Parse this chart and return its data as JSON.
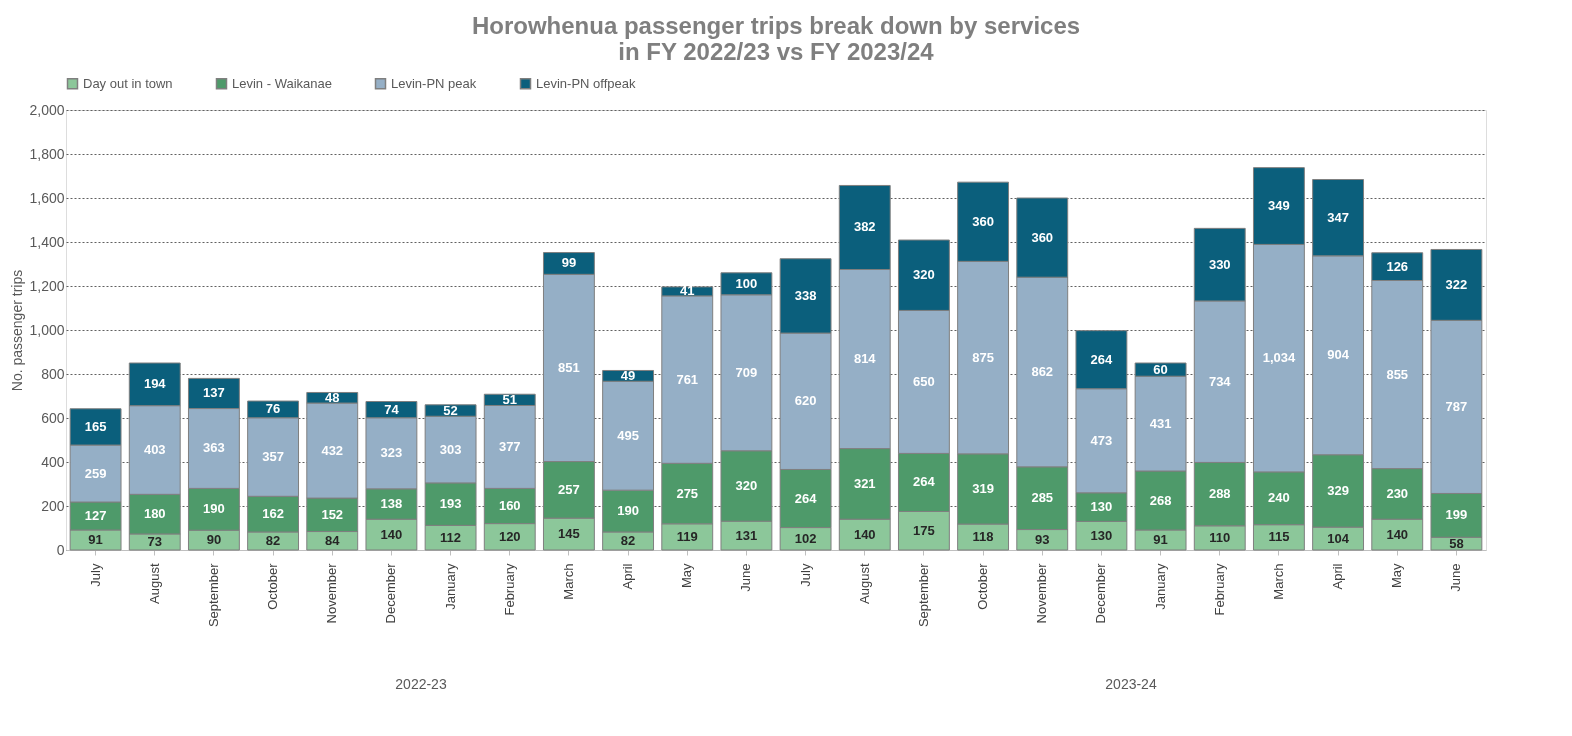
{
  "chart_data": {
    "type": "bar",
    "stacked": true,
    "title": "Horowhenua passenger trips break down by services\nin FY 2022/23 vs FY 2023/24",
    "ylabel": "No. passenger trips",
    "categories": [
      "July",
      "August",
      "September",
      "October",
      "November",
      "December",
      "January",
      "February",
      "March",
      "April",
      "May",
      "June",
      "July",
      "August",
      "September",
      "October",
      "November",
      "December",
      "January",
      "February",
      "March",
      "April",
      "May",
      "June"
    ],
    "series": [
      {
        "name": "Day out in town",
        "color": "#8cc79a",
        "values": [
          91,
          73,
          90,
          82,
          84,
          140,
          112,
          120,
          145,
          82,
          119,
          131,
          102,
          140,
          175,
          118,
          93,
          130,
          91,
          110,
          115,
          104,
          140,
          58
        ],
        "value_labels": [
          "91",
          "73",
          "90",
          "82",
          "84",
          "140",
          "112",
          "120",
          "145",
          "82",
          "119",
          "131",
          "102",
          "140",
          "175",
          "118",
          "93",
          "130",
          "91",
          "110",
          "115",
          "104",
          "140",
          "58"
        ]
      },
      {
        "name": "Levin - Waikanae",
        "color": "#4e9a6a",
        "values": [
          127,
          180,
          190,
          162,
          152,
          138,
          193,
          160,
          257,
          190,
          275,
          320,
          264,
          321,
          264,
          319,
          285,
          130,
          268,
          288,
          240,
          329,
          230,
          199
        ],
        "value_labels": [
          "127",
          "180",
          "190",
          "162",
          "152",
          "138",
          "193",
          "160",
          "257",
          "190",
          "275",
          "320",
          "264",
          "321",
          "264",
          "319",
          "285",
          "130",
          "268",
          "288",
          "240",
          "329",
          "230",
          "199"
        ]
      },
      {
        "name": "Levin-PN peak",
        "color": "#95afc6",
        "values": [
          259,
          403,
          363,
          357,
          432,
          323,
          303,
          377,
          851,
          495,
          761,
          709,
          620,
          814,
          650,
          875,
          862,
          473,
          431,
          734,
          1034,
          904,
          855,
          787
        ],
        "value_labels": [
          "259",
          "403",
          "363",
          "357",
          "432",
          "323",
          "303",
          "377",
          "851",
          "495",
          "761",
          "709",
          "620",
          "814",
          "650",
          "875",
          "862",
          "473",
          "431",
          "734",
          "1,034",
          "904",
          "855",
          "787"
        ]
      },
      {
        "name": "Levin-PN offpeak",
        "color": "#0b5f7c",
        "values": [
          165,
          194,
          137,
          76,
          48,
          74,
          52,
          51,
          99,
          49,
          41,
          100,
          338,
          382,
          320,
          360,
          360,
          264,
          60,
          330,
          349,
          347,
          126,
          322
        ],
        "value_labels": [
          "165",
          "194",
          "137",
          "76",
          "48",
          "74",
          "52",
          "51",
          "99",
          "49",
          "41",
          "100",
          "338",
          "382",
          "320",
          "360",
          "360",
          "264",
          "60",
          "330",
          "349",
          "347",
          "126",
          "322"
        ]
      }
    ],
    "ylim": [
      0,
      2000
    ],
    "yticks": [
      0,
      200,
      400,
      600,
      800,
      {
        "value": 1000,
        "label": "1,000"
      },
      {
        "value": 1200,
        "label": "1,200"
      },
      {
        "value": 1400,
        "label": "1,400"
      },
      {
        "value": 1600,
        "label": "1,600"
      },
      {
        "value": 1800,
        "label": "1,800"
      },
      {
        "value": 2000,
        "label": "2,000"
      }
    ],
    "grid": "y",
    "legend": "top",
    "annotations": [
      "2022-23",
      "2023-24"
    ]
  }
}
